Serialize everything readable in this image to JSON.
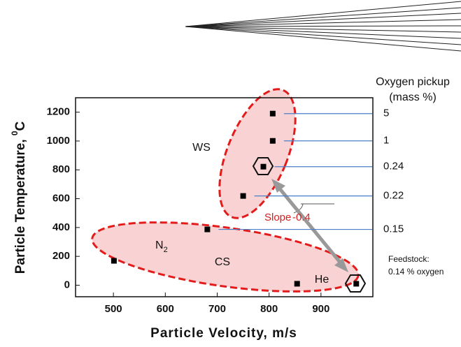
{
  "chart_data": {
    "type": "scatter",
    "x_label": "Particle Velocity, m/s",
    "y_label": "Particle Temperature, ",
    "y_label_superscript": "0",
    "y_label_unit": "C",
    "x": [
      501,
      681,
      750,
      789,
      807,
      807,
      854,
      968
    ],
    "values": [
      169,
      387,
      619,
      822,
      1001,
      1190,
      10,
      10
    ],
    "color": "#000000",
    "xlim": [
      427,
      1000
    ],
    "xticks": [
      500,
      600,
      700,
      800,
      900
    ],
    "ylim": [
      -80,
      1300
    ],
    "yticks": [
      0,
      200,
      400,
      600,
      800,
      1000,
      1200
    ],
    "pickup_title": "Oxygen pickup",
    "pickup_unit": "(mass %)",
    "pickup_points": [
      5,
      4,
      3,
      2,
      1
    ],
    "pickup_values": [
      5,
      1,
      0.24,
      0.22,
      0.15
    ],
    "label_ws": "WS",
    "label_n": "N",
    "label_n_sub": "2",
    "label_cs": "CS",
    "label_he": "He",
    "slope_label": "Slope",
    "slope_value": "-0.4",
    "feedstock_line1": "Feedstock:",
    "feedstock_line2": "0.14 % oxygen"
  }
}
